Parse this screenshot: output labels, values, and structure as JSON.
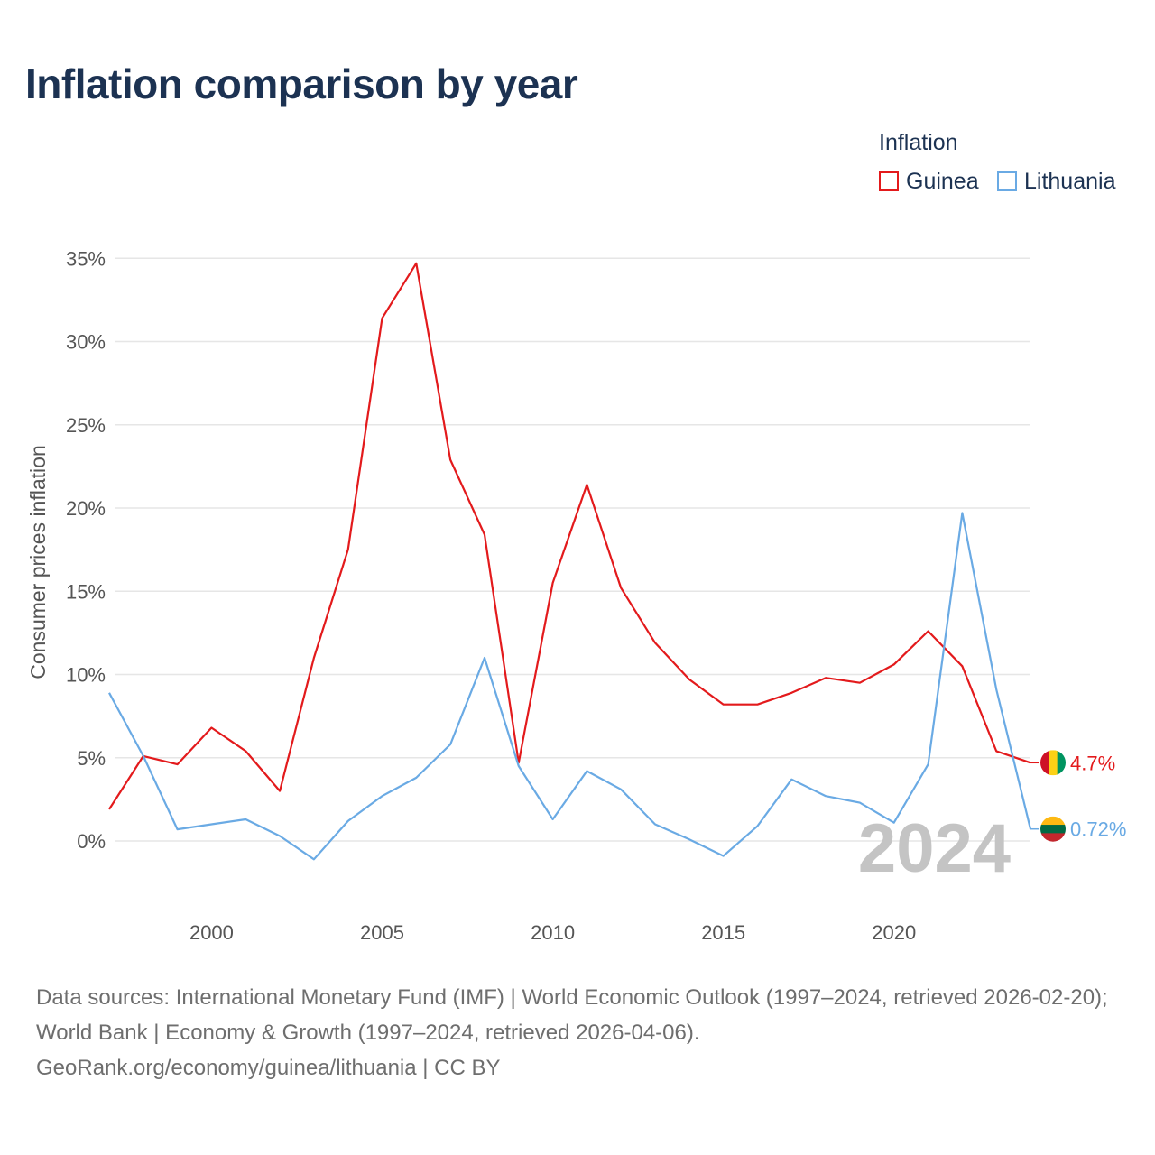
{
  "title": "Inflation comparison by year",
  "legend": {
    "title": "Inflation",
    "items": [
      {
        "name": "Guinea",
        "color": "#e31a1c"
      },
      {
        "name": "Lithuania",
        "color": "#6aaae4"
      }
    ]
  },
  "chart_data": {
    "type": "line",
    "title": "Inflation comparison by year",
    "xlabel": "",
    "ylabel": "Consumer prices inflation",
    "xlim": [
      1997,
      2024
    ],
    "ylim": [
      -3,
      36
    ],
    "x_ticks": [
      2000,
      2005,
      2010,
      2015,
      2020
    ],
    "x_tick_labels": [
      "2000",
      "2005",
      "2010",
      "2015",
      "2020"
    ],
    "y_ticks": [
      0,
      5,
      10,
      15,
      20,
      25,
      30,
      35
    ],
    "y_tick_labels": [
      "0%",
      "5%",
      "10%",
      "15%",
      "20%",
      "25%",
      "30%",
      "35%"
    ],
    "grid": true,
    "year_watermark": "2024",
    "x": [
      1997,
      1998,
      1999,
      2000,
      2001,
      2002,
      2003,
      2004,
      2005,
      2006,
      2007,
      2008,
      2009,
      2010,
      2011,
      2012,
      2013,
      2014,
      2015,
      2016,
      2017,
      2018,
      2019,
      2020,
      2021,
      2022,
      2023,
      2024
    ],
    "series": [
      {
        "name": "Guinea",
        "color": "#e31a1c",
        "values": [
          1.9,
          5.1,
          4.6,
          6.8,
          5.4,
          3.0,
          11.0,
          17.5,
          31.4,
          34.7,
          22.9,
          18.4,
          4.7,
          15.5,
          21.4,
          15.2,
          11.9,
          9.7,
          8.2,
          8.2,
          8.9,
          9.8,
          9.5,
          10.6,
          12.6,
          10.5,
          5.4,
          4.7
        ],
        "end_label": "4.7%",
        "flag_colors": [
          "#ce1126",
          "#fcd116",
          "#009460"
        ]
      },
      {
        "name": "Lithuania",
        "color": "#6aaae4",
        "values": [
          8.9,
          5.1,
          0.7,
          1.0,
          1.3,
          0.3,
          -1.1,
          1.2,
          2.7,
          3.8,
          5.8,
          11.0,
          4.5,
          1.3,
          4.2,
          3.1,
          1.0,
          0.1,
          -0.9,
          0.9,
          3.7,
          2.7,
          2.3,
          1.1,
          4.6,
          19.7,
          9.1,
          0.72
        ],
        "end_label": "0.72%",
        "flag_colors": [
          "#fdb913",
          "#006a44",
          "#c1272d"
        ]
      }
    ]
  },
  "source": {
    "line1": "Data sources: International Monetary Fund (IMF) | World Economic Outlook (1997–2024, retrieved 2026-02-20); World Bank | Economy & Growth (1997–2024, retrieved 2026-04-06).",
    "line2": "GeoRank.org/economy/guinea/lithuania | CC BY"
  }
}
